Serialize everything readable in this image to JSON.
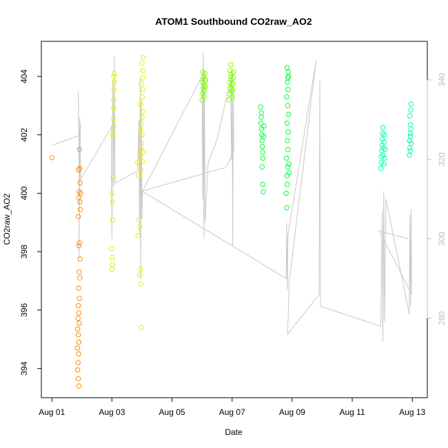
{
  "chart_data": {
    "type": "scatter",
    "title": "ATOM1 Southbound CO2raw_AO2",
    "xlabel": "Date",
    "ylabel": "CO2raw_AO2",
    "x_ticks": [
      "Aug 01",
      "Aug 03",
      "Aug 05",
      "Aug 07",
      "Aug 09",
      "Aug 11",
      "Aug 13"
    ],
    "x_tick_values": [
      0,
      2,
      4,
      6,
      8,
      10,
      12
    ],
    "xlim": [
      -0.35,
      12.5
    ],
    "ylim": [
      393.0,
      405.2
    ],
    "y_ticks": [
      394,
      396,
      398,
      400,
      402,
      404
    ],
    "y_right_ticks": [
      280,
      300,
      320,
      340
    ],
    "y_right_lim": [
      260.0,
      349.7
    ],
    "grid": false,
    "series": [
      {
        "color": "#ff8c00",
        "points": [
          [
            0.0,
            401.22
          ],
          [
            0.9,
            393.4
          ],
          [
            0.88,
            393.65
          ],
          [
            0.86,
            393.95
          ],
          [
            0.87,
            394.2
          ],
          [
            0.89,
            394.5
          ],
          [
            0.85,
            394.7
          ],
          [
            0.9,
            394.9
          ],
          [
            0.88,
            395.15
          ],
          [
            0.86,
            395.35
          ],
          [
            0.91,
            395.55
          ],
          [
            0.87,
            395.72
          ],
          [
            0.9,
            395.9
          ],
          [
            0.88,
            396.15
          ],
          [
            0.92,
            396.4
          ],
          [
            0.89,
            396.75
          ],
          [
            0.93,
            397.1
          ],
          [
            0.91,
            397.3
          ],
          [
            0.94,
            397.75
          ],
          [
            0.9,
            398.2
          ],
          [
            0.92,
            398.3
          ],
          [
            0.88,
            399.2
          ],
          [
            0.95,
            399.45
          ],
          [
            0.93,
            399.7
          ],
          [
            0.9,
            399.85
          ],
          [
            0.96,
            400.0
          ],
          [
            0.91,
            400.05
          ],
          [
            0.94,
            400.35
          ],
          [
            0.89,
            400.8
          ],
          [
            0.93,
            400.85
          ],
          [
            0.92,
            401.5
          ]
        ]
      },
      {
        "color": "#e7f000",
        "points": [
          [
            2.0,
            397.4
          ],
          [
            2.02,
            397.55
          ],
          [
            2.01,
            397.8
          ],
          [
            1.99,
            398.1
          ],
          [
            2.03,
            399.1
          ],
          [
            2.02,
            399.7
          ],
          [
            2.0,
            400.0
          ],
          [
            2.04,
            400.55
          ],
          [
            2.03,
            402.0
          ],
          [
            2.05,
            402.3
          ],
          [
            2.04,
            402.55
          ],
          [
            2.06,
            402.9
          ],
          [
            2.05,
            403.2
          ],
          [
            2.07,
            403.55
          ],
          [
            2.08,
            403.8
          ],
          [
            2.06,
            404.0
          ],
          [
            2.08,
            404.1
          ],
          [
            2.85,
            401.05
          ],
          [
            2.88,
            400.6
          ],
          [
            2.9,
            399.1
          ],
          [
            2.92,
            398.85
          ],
          [
            2.87,
            398.55
          ],
          [
            2.95,
            397.4
          ],
          [
            2.93,
            397.2
          ],
          [
            2.96,
            396.9
          ],
          [
            2.98,
            395.4
          ],
          [
            2.94,
            401.3
          ],
          [
            2.97,
            401.5
          ],
          [
            2.99,
            401.7
          ],
          [
            3.0,
            402.0
          ],
          [
            2.96,
            402.2
          ],
          [
            2.99,
            402.4
          ],
          [
            3.0,
            402.6
          ],
          [
            3.02,
            402.8
          ],
          [
            2.95,
            403.05
          ],
          [
            3.01,
            403.3
          ],
          [
            3.03,
            403.55
          ],
          [
            2.98,
            403.75
          ],
          [
            3.02,
            403.95
          ],
          [
            3.04,
            404.2
          ],
          [
            3.0,
            404.45
          ],
          [
            3.03,
            404.65
          ],
          [
            2.97,
            400.8
          ],
          [
            3.01,
            401.1
          ],
          [
            3.04,
            401.4
          ]
        ]
      },
      {
        "color": "#7fff00",
        "points": [
          [
            5.0,
            403.2
          ],
          [
            5.02,
            403.4
          ],
          [
            5.04,
            403.6
          ],
          [
            5.01,
            403.8
          ],
          [
            5.05,
            404.0
          ],
          [
            5.03,
            404.15
          ],
          [
            5.06,
            403.5
          ],
          [
            5.08,
            403.7
          ],
          [
            5.1,
            403.9
          ],
          [
            5.07,
            403.3
          ],
          [
            5.09,
            404.1
          ],
          [
            5.11,
            403.65
          ],
          [
            5.12,
            403.85
          ],
          [
            5.9,
            403.2
          ],
          [
            5.92,
            403.4
          ],
          [
            5.94,
            403.6
          ],
          [
            5.91,
            403.8
          ],
          [
            5.95,
            404.0
          ],
          [
            5.93,
            404.2
          ],
          [
            5.96,
            404.4
          ],
          [
            5.98,
            403.5
          ],
          [
            6.0,
            403.7
          ],
          [
            5.97,
            403.9
          ],
          [
            5.99,
            404.1
          ],
          [
            6.01,
            403.3
          ],
          [
            6.02,
            403.55
          ],
          [
            6.03,
            403.75
          ],
          [
            6.04,
            403.95
          ],
          [
            6.05,
            404.15
          ]
        ]
      },
      {
        "color": "#00ff33",
        "points": [
          [
            6.95,
            402.95
          ],
          [
            6.97,
            402.6
          ],
          [
            6.96,
            402.4
          ],
          [
            6.98,
            402.2
          ],
          [
            6.99,
            402.0
          ],
          [
            7.0,
            401.8
          ],
          [
            7.01,
            401.6
          ],
          [
            7.02,
            401.4
          ],
          [
            7.03,
            401.2
          ],
          [
            7.0,
            400.9
          ],
          [
            7.02,
            400.3
          ],
          [
            7.04,
            400.05
          ],
          [
            6.98,
            402.75
          ],
          [
            7.05,
            401.95
          ],
          [
            7.06,
            402.3
          ],
          [
            7.8,
            400.0
          ],
          [
            7.82,
            399.5
          ],
          [
            7.84,
            400.3
          ],
          [
            7.83,
            400.6
          ],
          [
            7.85,
            400.9
          ],
          [
            7.81,
            401.2
          ],
          [
            7.86,
            401.5
          ],
          [
            7.84,
            401.8
          ],
          [
            7.87,
            402.1
          ],
          [
            7.83,
            402.4
          ],
          [
            7.88,
            402.7
          ],
          [
            7.85,
            403.0
          ],
          [
            7.82,
            403.3
          ],
          [
            7.86,
            403.55
          ],
          [
            7.84,
            403.8
          ],
          [
            7.88,
            404.0
          ],
          [
            7.83,
            404.3
          ],
          [
            7.87,
            404.15
          ],
          [
            7.85,
            403.95
          ],
          [
            7.89,
            401.0
          ],
          [
            7.9,
            400.7
          ]
        ]
      },
      {
        "color": "#00ffaa",
        "points": [
          [
            10.95,
            400.85
          ],
          [
            10.97,
            401.05
          ],
          [
            10.96,
            401.25
          ],
          [
            10.98,
            401.45
          ],
          [
            10.99,
            401.65
          ],
          [
            11.0,
            401.85
          ],
          [
            11.01,
            402.05
          ],
          [
            11.02,
            402.25
          ],
          [
            11.03,
            401.3
          ],
          [
            11.04,
            401.55
          ],
          [
            11.05,
            401.0
          ],
          [
            11.06,
            401.75
          ],
          [
            11.07,
            402.0
          ],
          [
            11.08,
            401.2
          ],
          [
            11.1,
            401.5
          ],
          [
            11.9,
            401.3
          ],
          [
            11.92,
            401.55
          ],
          [
            11.91,
            401.8
          ],
          [
            11.93,
            402.05
          ],
          [
            11.94,
            402.35
          ],
          [
            11.92,
            402.65
          ],
          [
            11.95,
            402.85
          ],
          [
            11.96,
            403.05
          ],
          [
            11.93,
            401.45
          ],
          [
            11.97,
            401.7
          ],
          [
            11.94,
            401.95
          ],
          [
            11.95,
            402.2
          ]
        ]
      }
    ],
    "right_series": {
      "color": "#c8c8c8",
      "polyline": [
        [
          0.0,
          323.5
        ],
        [
          0.9,
          326.0
        ],
        [
          0.88,
          337.0
        ],
        [
          0.92,
          310.0
        ],
        [
          0.95,
          329.0
        ],
        [
          0.9,
          295.0
        ],
        [
          0.93,
          330.5
        ],
        [
          0.96,
          315.0
        ],
        [
          1.98,
          328.0
        ],
        [
          2.0,
          300.0
        ],
        [
          2.03,
          340.0
        ],
        [
          2.06,
          313.0
        ],
        [
          2.08,
          346.0
        ],
        [
          2.1,
          314.0
        ],
        [
          2.85,
          317.0
        ],
        [
          2.9,
          330.0
        ],
        [
          2.92,
          301.0
        ],
        [
          2.94,
          340.5
        ],
        [
          2.96,
          290.0
        ],
        [
          2.98,
          335.0
        ],
        [
          3.0,
          305.0
        ],
        [
          3.02,
          312.0
        ],
        [
          5.0,
          341.0
        ],
        [
          5.02,
          310.0
        ],
        [
          5.04,
          347.0
        ],
        [
          5.06,
          300.0
        ],
        [
          5.08,
          342.0
        ],
        [
          5.1,
          304.0
        ],
        [
          5.2,
          319.0
        ],
        [
          5.5,
          325.0
        ],
        [
          5.95,
          340.0
        ],
        [
          5.98,
          320.0
        ],
        [
          6.0,
          342.0
        ],
        [
          6.02,
          298.0
        ],
        [
          6.04,
          338.0
        ],
        [
          6.06,
          322.0
        ],
        [
          5.8,
          318.0
        ],
        [
          3.0,
          312.0
        ],
        [
          7.8,
          290.0
        ],
        [
          7.82,
          304.0
        ],
        [
          7.84,
          287.0
        ],
        [
          7.86,
          301.0
        ],
        [
          8.8,
          345.0
        ],
        [
          7.9,
          289.0
        ],
        [
          7.85,
          276.0
        ],
        [
          8.9,
          286.0
        ],
        [
          8.92,
          340.0
        ],
        [
          8.94,
          283.0
        ],
        [
          10.95,
          278.0
        ],
        [
          11.0,
          307.0
        ],
        [
          11.02,
          274.0
        ],
        [
          11.05,
          312.0
        ],
        [
          11.08,
          279.0
        ],
        [
          11.12,
          310.0
        ],
        [
          11.9,
          281.0
        ],
        [
          11.92,
          306.0
        ],
        [
          11.94,
          283.0
        ],
        [
          11.96,
          307.5
        ],
        [
          11.98,
          286.0
        ],
        [
          10.9,
          302.0
        ],
        [
          11.85,
          300.0
        ]
      ]
    }
  }
}
